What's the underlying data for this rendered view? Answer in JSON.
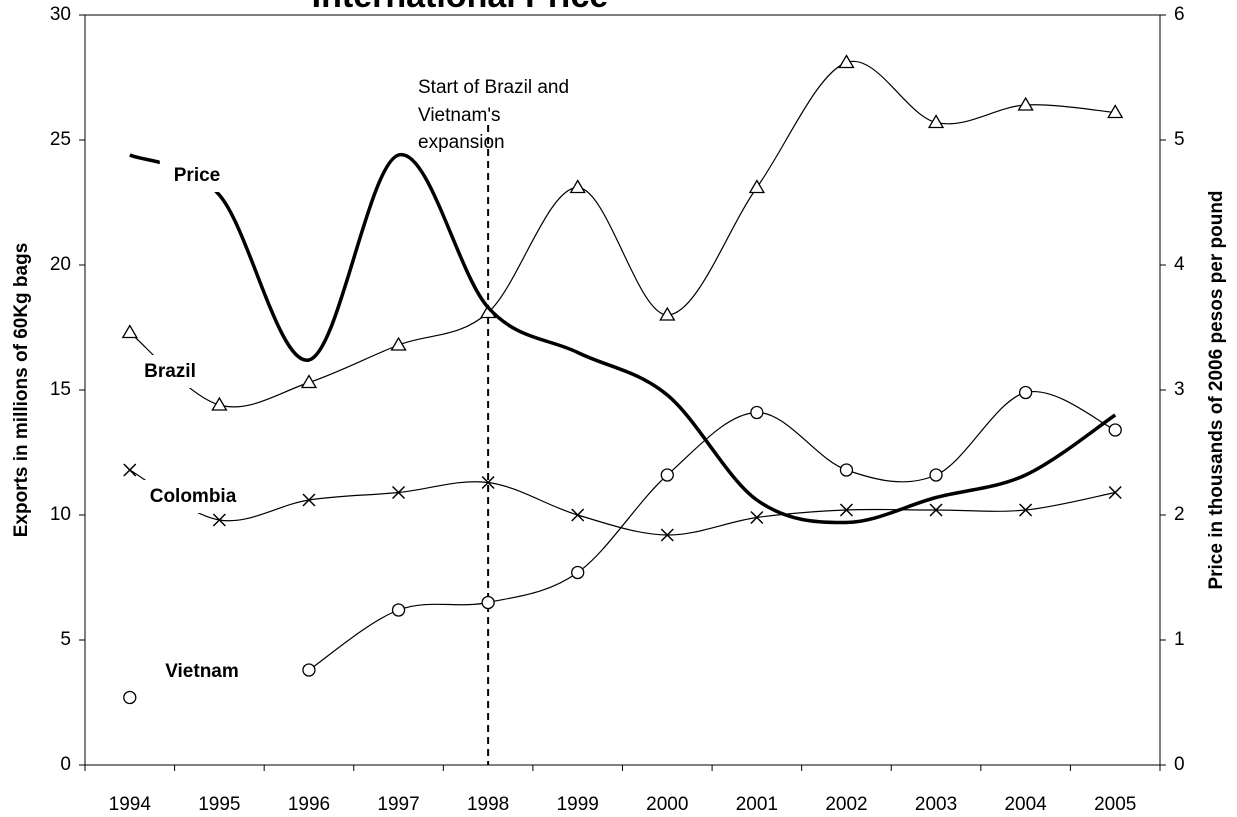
{
  "chart_data": {
    "type": "line",
    "title": "International Price",
    "y_label": "Exports in millions of 60Kg bags",
    "y2_label": "Price in thousands of 2006 pesos per pound",
    "annotation": [
      "Start of Brazil and",
      "Vietnam's",
      "expansion"
    ],
    "categories": [
      "1994",
      "1995",
      "1996",
      "1997",
      "1998",
      "1999",
      "2000",
      "2001",
      "2002",
      "2003",
      "2004",
      "2005"
    ],
    "ylim": [
      0,
      30
    ],
    "yticks": [
      0,
      5,
      10,
      15,
      20,
      25,
      30
    ],
    "y2lim": [
      0,
      6
    ],
    "y2ticks": [
      0,
      1,
      2,
      3,
      4,
      5,
      6
    ],
    "series": [
      {
        "name": "Brazil",
        "color": "#000000",
        "marker": "triangle",
        "values": [
          17.3,
          14.4,
          15.3,
          16.8,
          18.1,
          23.1,
          18.0,
          23.1,
          28.1,
          25.7,
          26.4,
          26.1
        ]
      },
      {
        "name": "Colombia",
        "color": "#000000",
        "marker": "x",
        "values": [
          11.8,
          9.8,
          10.6,
          10.9,
          11.3,
          10.0,
          9.2,
          9.9,
          10.2,
          10.2,
          10.2,
          10.9
        ]
      },
      {
        "name": "Vietnam",
        "color": "#000000",
        "marker": "circle",
        "values": [
          2.7,
          null,
          3.8,
          6.2,
          6.5,
          7.7,
          11.6,
          14.1,
          11.8,
          11.6,
          14.9,
          13.4
        ]
      },
      {
        "name": "Price",
        "color": "#000000",
        "axis": "y2",
        "values": [
          4.88,
          4.56,
          3.24,
          4.88,
          3.66,
          3.3,
          2.96,
          2.12,
          1.94,
          2.14,
          2.32,
          2.8
        ]
      }
    ]
  }
}
